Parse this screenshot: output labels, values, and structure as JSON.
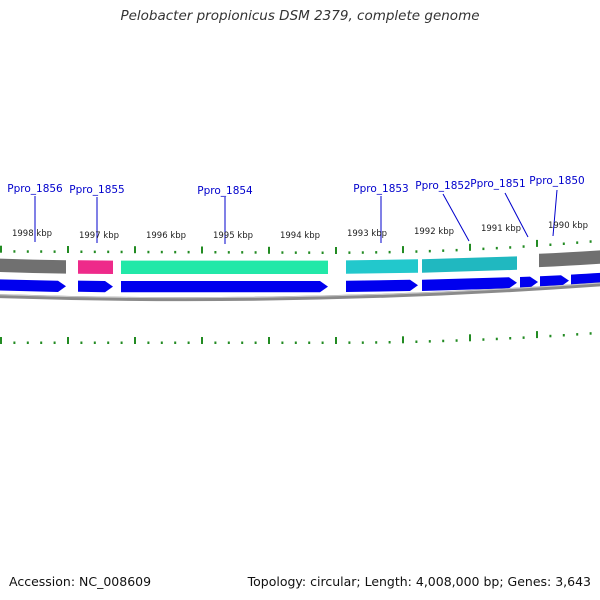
{
  "title": "Pelobacter propionicus DSM 2379, complete genome",
  "footer": {
    "accession": "Accession: NC_008609",
    "summary": "Topology: circular; Length: 4,008,000 bp; Genes: 3,643"
  },
  "colors": {
    "cds_arrow": "#0000ee",
    "backbone": "#808080",
    "tick": "#228b22",
    "label": "#0000cc",
    "magenta": "#ee2a8a",
    "spring_green": "#22e8a8",
    "cyan": "#22c8cc",
    "teal": "#20b8c0",
    "gray": "#707070"
  },
  "kbp_labels": [
    "1998 kbp",
    "1997 kbp",
    "1996 kbp",
    "1995 kbp",
    "1994 kbp",
    "1993 kbp",
    "1992 kbp",
    "1991 kbp",
    "1990 kbp"
  ],
  "genes": [
    {
      "name": "Ppro_1856"
    },
    {
      "name": "Ppro_1855"
    },
    {
      "name": "Ppro_1854"
    },
    {
      "name": "Ppro_1853"
    },
    {
      "name": "Ppro_1852"
    },
    {
      "name": "Ppro_1851"
    },
    {
      "name": "Ppro_1850"
    }
  ]
}
